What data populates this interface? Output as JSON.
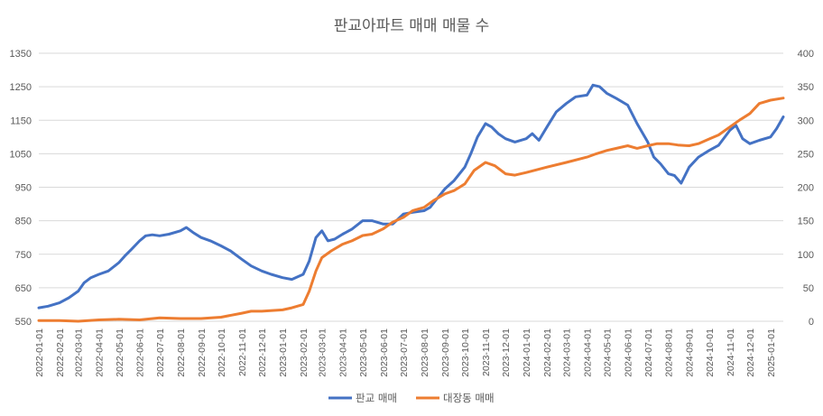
{
  "chart_data": {
    "type": "line",
    "title": "판교아파트 매매 매물 수",
    "x_ticks": [
      "2022-01-01",
      "2022-02-01",
      "2022-03-01",
      "2022-04-01",
      "2022-05-01",
      "2022-06-01",
      "2022-07-01",
      "2022-08-01",
      "2022-09-01",
      "2022-10-01",
      "2022-11-01",
      "2022-12-01",
      "2023-01-01",
      "2023-02-01",
      "2023-03-01",
      "2023-04-01",
      "2023-05-01",
      "2023-06-01",
      "2023-07-01",
      "2023-08-01",
      "2023-09-01",
      "2023-10-01",
      "2023-11-01",
      "2023-12-01",
      "2024-01-01",
      "2024-02-01",
      "2024-03-01",
      "2024-04-01",
      "2024-05-01",
      "2024-06-01",
      "2024-07-01",
      "2024-08-01",
      "2024-09-01",
      "2024-10-01",
      "2024-11-01",
      "2024-12-01",
      "2025-01-01"
    ],
    "x_range": [
      "2022-01-01",
      "2025-01-20"
    ],
    "y_left": {
      "ticks": [
        550,
        650,
        750,
        850,
        950,
        1050,
        1150,
        1250,
        1350
      ],
      "range": [
        550,
        1350
      ]
    },
    "y_right": {
      "ticks": [
        0,
        50,
        100,
        150,
        200,
        250,
        300,
        350,
        400
      ],
      "range": [
        0,
        400
      ]
    },
    "grid": true,
    "legend_position": "bottom",
    "series": [
      {
        "name": "판교 매매",
        "axis": "left",
        "color": "#4472C4",
        "points": [
          [
            "2022-01-01",
            590
          ],
          [
            "2022-01-15",
            595
          ],
          [
            "2022-02-01",
            605
          ],
          [
            "2022-02-15",
            620
          ],
          [
            "2022-03-01",
            640
          ],
          [
            "2022-03-10",
            665
          ],
          [
            "2022-03-20",
            680
          ],
          [
            "2022-04-01",
            690
          ],
          [
            "2022-04-15",
            700
          ],
          [
            "2022-05-01",
            725
          ],
          [
            "2022-05-10",
            745
          ],
          [
            "2022-05-20",
            765
          ],
          [
            "2022-06-01",
            790
          ],
          [
            "2022-06-10",
            805
          ],
          [
            "2022-06-20",
            808
          ],
          [
            "2022-07-01",
            805
          ],
          [
            "2022-07-15",
            810
          ],
          [
            "2022-08-01",
            820
          ],
          [
            "2022-08-10",
            830
          ],
          [
            "2022-08-20",
            815
          ],
          [
            "2022-09-01",
            800
          ],
          [
            "2022-09-15",
            790
          ],
          [
            "2022-10-01",
            775
          ],
          [
            "2022-10-15",
            760
          ],
          [
            "2022-11-01",
            735
          ],
          [
            "2022-11-15",
            715
          ],
          [
            "2022-12-01",
            700
          ],
          [
            "2022-12-15",
            690
          ],
          [
            "2023-01-01",
            680
          ],
          [
            "2023-01-15",
            675
          ],
          [
            "2023-02-01",
            690
          ],
          [
            "2023-02-10",
            730
          ],
          [
            "2023-02-20",
            800
          ],
          [
            "2023-03-01",
            820
          ],
          [
            "2023-03-10",
            790
          ],
          [
            "2023-03-20",
            795
          ],
          [
            "2023-04-01",
            810
          ],
          [
            "2023-04-15",
            825
          ],
          [
            "2023-05-01",
            850
          ],
          [
            "2023-05-15",
            850
          ],
          [
            "2023-06-01",
            840
          ],
          [
            "2023-06-15",
            840
          ],
          [
            "2023-07-01",
            870
          ],
          [
            "2023-07-15",
            875
          ],
          [
            "2023-08-01",
            880
          ],
          [
            "2023-08-10",
            890
          ],
          [
            "2023-08-20",
            915
          ],
          [
            "2023-09-01",
            945
          ],
          [
            "2023-09-15",
            970
          ],
          [
            "2023-10-01",
            1010
          ],
          [
            "2023-10-10",
            1050
          ],
          [
            "2023-10-20",
            1100
          ],
          [
            "2023-11-01",
            1140
          ],
          [
            "2023-11-10",
            1130
          ],
          [
            "2023-11-20",
            1110
          ],
          [
            "2023-12-01",
            1095
          ],
          [
            "2023-12-15",
            1085
          ],
          [
            "2024-01-01",
            1095
          ],
          [
            "2024-01-10",
            1110
          ],
          [
            "2024-01-20",
            1090
          ],
          [
            "2024-02-01",
            1130
          ],
          [
            "2024-02-15",
            1175
          ],
          [
            "2024-03-01",
            1200
          ],
          [
            "2024-03-15",
            1220
          ],
          [
            "2024-04-01",
            1225
          ],
          [
            "2024-04-10",
            1255
          ],
          [
            "2024-04-20",
            1250
          ],
          [
            "2024-05-01",
            1230
          ],
          [
            "2024-05-15",
            1215
          ],
          [
            "2024-06-01",
            1195
          ],
          [
            "2024-06-15",
            1140
          ],
          [
            "2024-07-01",
            1085
          ],
          [
            "2024-07-10",
            1040
          ],
          [
            "2024-07-20",
            1020
          ],
          [
            "2024-08-01",
            990
          ],
          [
            "2024-08-10",
            985
          ],
          [
            "2024-08-20",
            962
          ],
          [
            "2024-09-01",
            1010
          ],
          [
            "2024-09-15",
            1040
          ],
          [
            "2024-10-01",
            1060
          ],
          [
            "2024-10-15",
            1075
          ],
          [
            "2024-11-01",
            1120
          ],
          [
            "2024-11-10",
            1135
          ],
          [
            "2024-11-20",
            1095
          ],
          [
            "2024-12-01",
            1080
          ],
          [
            "2024-12-15",
            1090
          ],
          [
            "2025-01-01",
            1100
          ],
          [
            "2025-01-10",
            1125
          ],
          [
            "2025-01-20",
            1160
          ]
        ]
      },
      {
        "name": "대장동 매매",
        "axis": "right",
        "color": "#ED7D31",
        "points": [
          [
            "2022-01-01",
            1
          ],
          [
            "2022-02-01",
            1
          ],
          [
            "2022-03-01",
            0
          ],
          [
            "2022-04-01",
            2
          ],
          [
            "2022-05-01",
            3
          ],
          [
            "2022-06-01",
            2
          ],
          [
            "2022-07-01",
            5
          ],
          [
            "2022-08-01",
            4
          ],
          [
            "2022-09-01",
            4
          ],
          [
            "2022-10-01",
            6
          ],
          [
            "2022-11-01",
            12
          ],
          [
            "2022-11-15",
            15
          ],
          [
            "2022-12-01",
            15
          ],
          [
            "2023-01-01",
            17
          ],
          [
            "2023-01-15",
            20
          ],
          [
            "2023-02-01",
            25
          ],
          [
            "2023-02-10",
            45
          ],
          [
            "2023-02-20",
            75
          ],
          [
            "2023-03-01",
            95
          ],
          [
            "2023-03-15",
            105
          ],
          [
            "2023-04-01",
            115
          ],
          [
            "2023-04-15",
            120
          ],
          [
            "2023-05-01",
            128
          ],
          [
            "2023-05-15",
            130
          ],
          [
            "2023-06-01",
            138
          ],
          [
            "2023-06-15",
            148
          ],
          [
            "2023-07-01",
            155
          ],
          [
            "2023-07-15",
            165
          ],
          [
            "2023-08-01",
            170
          ],
          [
            "2023-08-15",
            180
          ],
          [
            "2023-09-01",
            190
          ],
          [
            "2023-09-15",
            195
          ],
          [
            "2023-10-01",
            205
          ],
          [
            "2023-10-15",
            225
          ],
          [
            "2023-11-01",
            237
          ],
          [
            "2023-11-15",
            232
          ],
          [
            "2023-12-01",
            220
          ],
          [
            "2023-12-15",
            218
          ],
          [
            "2024-01-01",
            222
          ],
          [
            "2024-02-01",
            230
          ],
          [
            "2024-03-01",
            237
          ],
          [
            "2024-04-01",
            245
          ],
          [
            "2024-04-15",
            250
          ],
          [
            "2024-05-01",
            255
          ],
          [
            "2024-05-15",
            258
          ],
          [
            "2024-06-01",
            262
          ],
          [
            "2024-06-15",
            258
          ],
          [
            "2024-07-01",
            262
          ],
          [
            "2024-07-15",
            265
          ],
          [
            "2024-08-01",
            265
          ],
          [
            "2024-08-15",
            263
          ],
          [
            "2024-09-01",
            262
          ],
          [
            "2024-09-15",
            265
          ],
          [
            "2024-10-01",
            272
          ],
          [
            "2024-10-15",
            278
          ],
          [
            "2024-11-01",
            290
          ],
          [
            "2024-11-15",
            300
          ],
          [
            "2024-12-01",
            310
          ],
          [
            "2024-12-15",
            325
          ],
          [
            "2025-01-01",
            330
          ],
          [
            "2025-01-20",
            333
          ]
        ]
      }
    ]
  }
}
